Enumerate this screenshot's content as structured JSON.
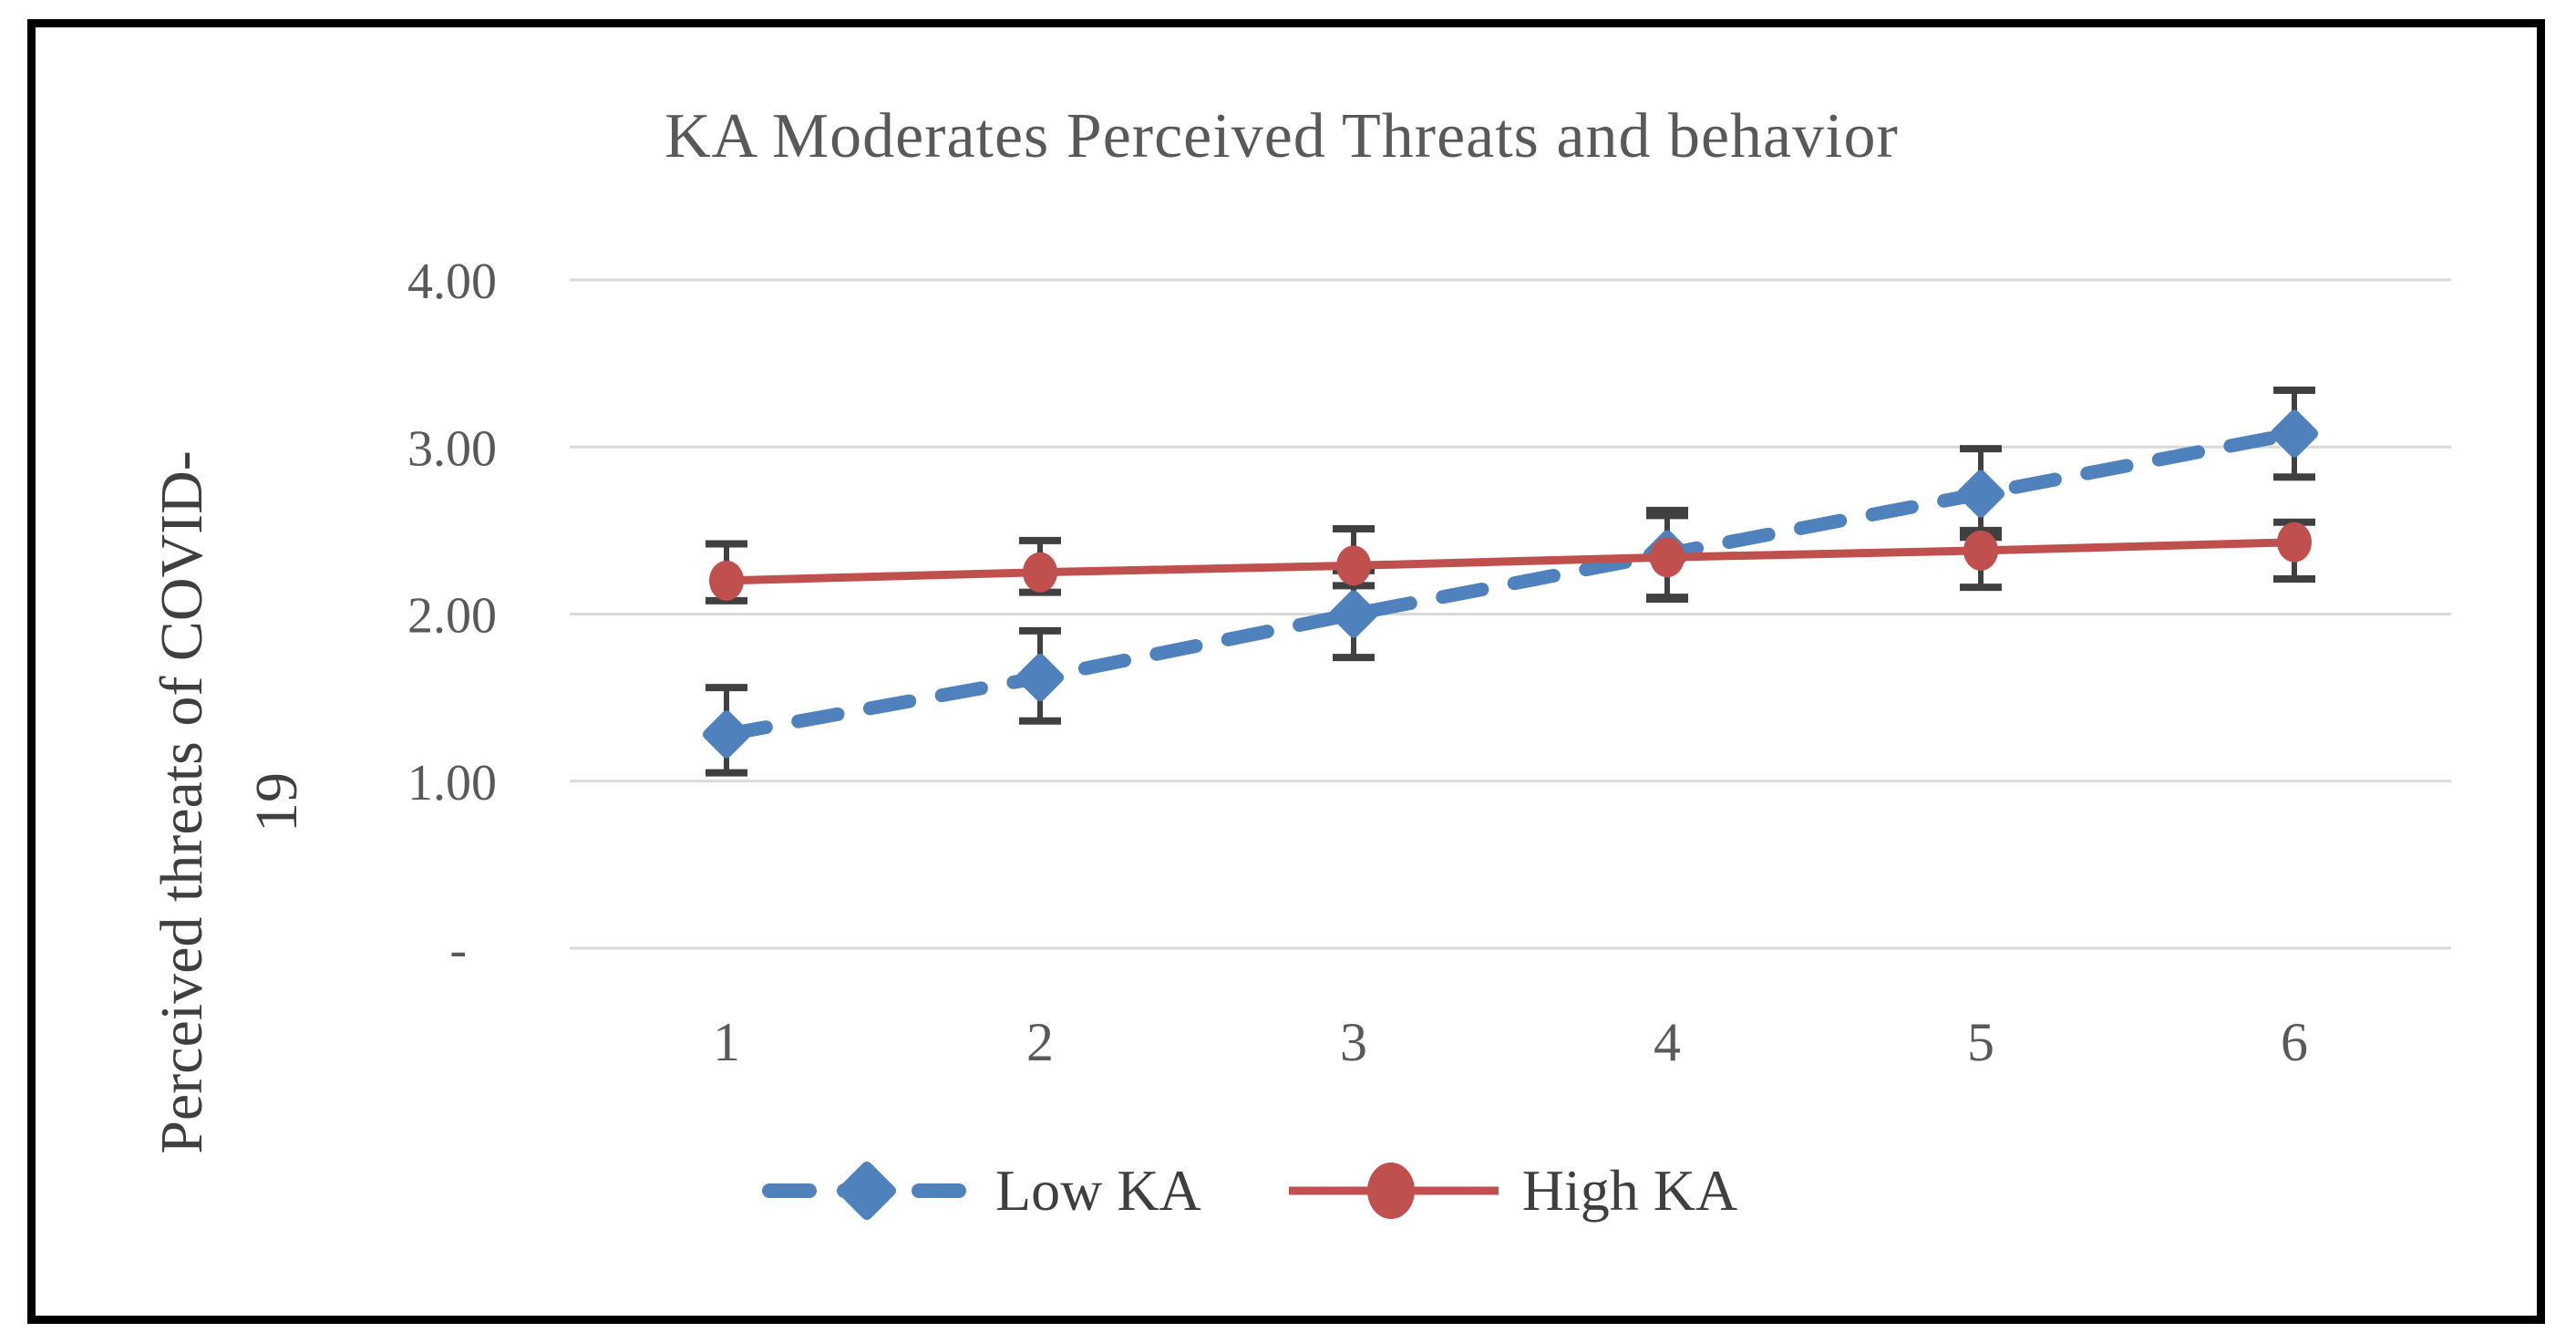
{
  "chart_data": {
    "type": "line",
    "title": "KA Moderates Perceived Threats and behavior",
    "ylabel_line1": "Perceived threats of COVID-",
    "ylabel_line2": "19",
    "xlabel": "",
    "categories": [
      "1",
      "2",
      "3",
      "4",
      "5",
      "6"
    ],
    "y_ticks": [
      {
        "value": 4,
        "label": "4.00"
      },
      {
        "value": 3,
        "label": "3.00"
      },
      {
        "value": 2,
        "label": "2.00"
      },
      {
        "value": 1,
        "label": "1.00"
      },
      {
        "value": 0,
        "label": "-"
      }
    ],
    "ylim": [
      0,
      4
    ],
    "grid": "horizontal-only",
    "legend_position": "bottom",
    "series": [
      {
        "name": "Low KA",
        "color": "#4F81BD",
        "line_style": "dashed",
        "marker": "diamond",
        "values": [
          1.28,
          1.62,
          2.0,
          2.36,
          2.72,
          3.08
        ],
        "error_plus": [
          0.28,
          0.28,
          0.26,
          0.26,
          0.27,
          0.26
        ],
        "error_minus": [
          0.23,
          0.26,
          0.26,
          0.26,
          0.26,
          0.26
        ]
      },
      {
        "name": "High KA",
        "color": "#C0504D",
        "line_style": "solid",
        "marker": "circle",
        "values": [
          2.2,
          2.25,
          2.29,
          2.34,
          2.38,
          2.43
        ],
        "error_plus": [
          0.22,
          0.19,
          0.22,
          0.25,
          0.12,
          0.12
        ],
        "error_minus": [
          0.12,
          0.12,
          0.12,
          0.25,
          0.22,
          0.22
        ]
      }
    ],
    "error_bar_color": "#404040",
    "gridline_color": "#D9D9D9",
    "axis_text_color": "#595959",
    "title_color": "#595959",
    "label_text_color": "#3F3F3F",
    "frame_color": "#000000"
  }
}
